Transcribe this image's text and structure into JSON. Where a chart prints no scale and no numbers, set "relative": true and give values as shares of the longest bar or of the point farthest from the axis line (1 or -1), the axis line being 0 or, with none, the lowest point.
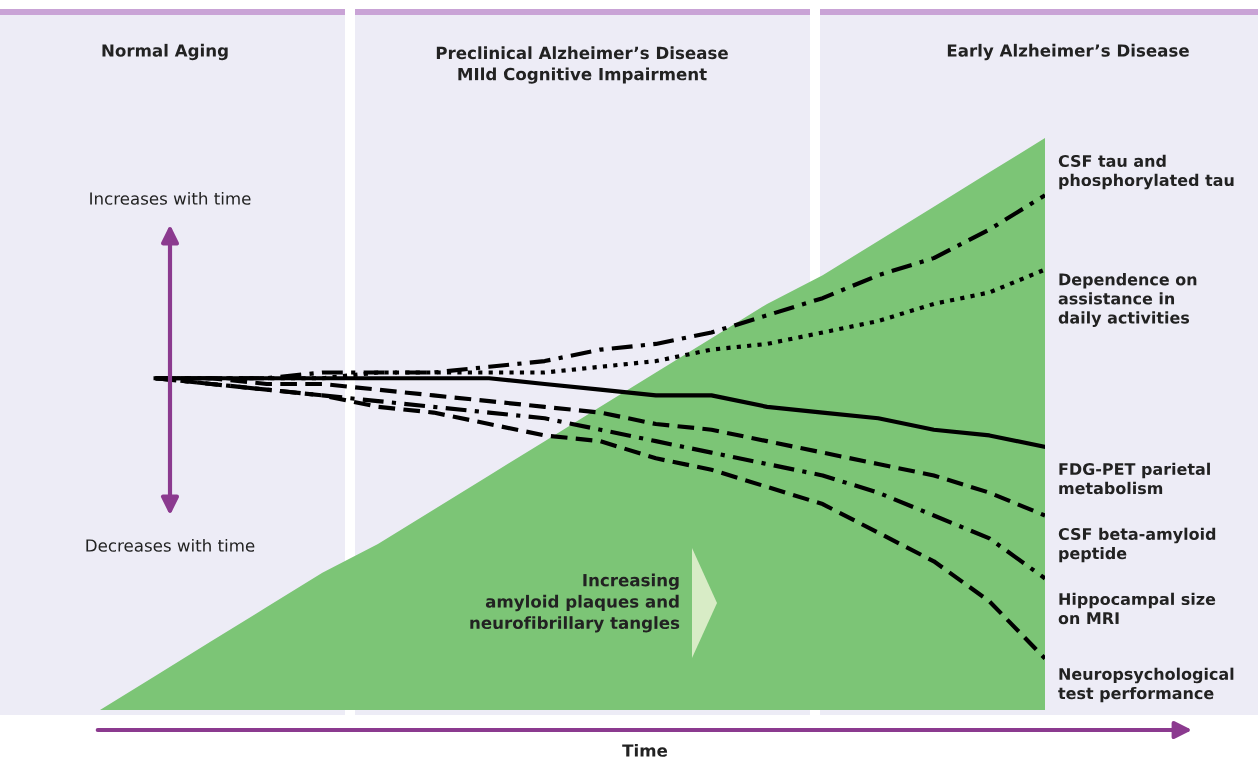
{
  "chart_data": {
    "type": "line",
    "relative": true,
    "legend": false,
    "xlabel": "Time",
    "categories": [
      null,
      null,
      null,
      null,
      null,
      null,
      null,
      null,
      null,
      null,
      null,
      null,
      null,
      null,
      null,
      null,
      null,
      null
    ],
    "series": [
      {
        "type": "area",
        "color": "#7cc576",
        "values": [
          0,
          0.06,
          0.12,
          0.18,
          0.24,
          0.29,
          0.35,
          0.41,
          0.47,
          0.53,
          0.59,
          0.65,
          0.71,
          0.76,
          0.82,
          0.88,
          0.94,
          1
        ]
      },
      {
        "name": "CSF tau and\nphosphorylated tau",
        "color": "#000000",
        "line_style": "dashdot",
        "values": [
          null,
          0.58,
          0.58,
          0.58,
          0.59,
          0.59,
          0.59,
          0.6,
          0.61,
          0.63,
          0.64,
          0.66,
          0.69,
          0.72,
          0.76,
          0.79,
          0.84,
          0.9
        ]
      },
      {
        "name": "Dependence on\nassistance in\ndaily activities",
        "color": "#000000",
        "line_style": "dotted",
        "values": [
          null,
          0.58,
          0.58,
          0.58,
          0.58,
          0.59,
          0.59,
          0.59,
          0.59,
          0.6,
          0.61,
          0.63,
          0.64,
          0.66,
          0.68,
          0.71,
          0.73,
          0.77
        ]
      },
      {
        "name": "FDG-PET parietal\nmetabolism",
        "color": "#000000",
        "line_style": "solid",
        "values": [
          null,
          0.58,
          0.58,
          0.58,
          0.58,
          0.58,
          0.58,
          0.58,
          0.57,
          0.56,
          0.55,
          0.55,
          0.53,
          0.52,
          0.51,
          0.49,
          0.48,
          0.46
        ]
      },
      {
        "name": "CSF beta-amyloid\npeptide",
        "color": "#000000",
        "line_style": "dashed",
        "values": [
          null,
          0.58,
          0.58,
          0.57,
          0.57,
          0.56,
          0.55,
          0.54,
          0.53,
          0.52,
          0.5,
          0.49,
          0.47,
          0.45,
          0.43,
          0.41,
          0.38,
          0.34
        ]
      },
      {
        "name": "Hippocampal size\non MRI",
        "color": "#000000",
        "line_style": "dashdot",
        "values": [
          null,
          0.58,
          0.57,
          0.56,
          0.55,
          0.54,
          0.53,
          0.52,
          0.51,
          0.49,
          0.47,
          0.45,
          0.43,
          0.41,
          0.38,
          0.34,
          0.3,
          0.23
        ]
      },
      {
        "name": "Neuropsychological\ntest performance",
        "color": "#000000",
        "line_style": "dashed",
        "values": [
          null,
          0.58,
          0.57,
          0.56,
          0.55,
          0.53,
          0.52,
          0.5,
          0.48,
          0.47,
          0.44,
          0.42,
          0.39,
          0.36,
          0.31,
          0.26,
          0.19,
          0.09
        ]
      }
    ],
    "annotations": [
      "Normal Aging",
      "Preclinical Alzheimer’s Disease\nMIld Cognitive Impairment",
      "Early Alzheimer’s Disease",
      "Increases with time",
      "Decreases with time",
      "Increasing\namyloid plaques and\nneurofibrillary tangles"
    ]
  }
}
